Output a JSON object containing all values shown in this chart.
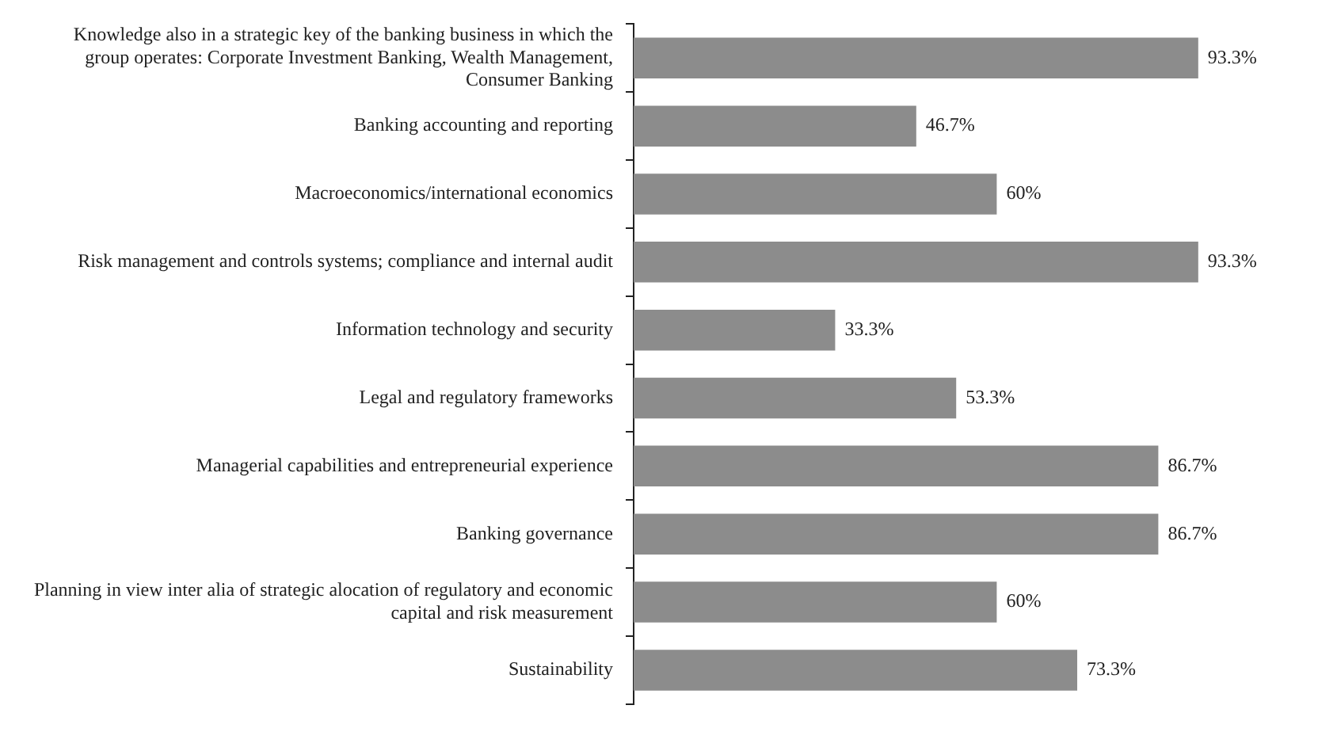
{
  "chart_data": {
    "type": "bar",
    "orientation": "horizontal",
    "categories": [
      "Knowledge also in a strategic key of the banking business in which the group operates: Corporate Investment Banking, Wealth Management, Consumer Banking",
      "Banking accounting and reporting",
      "Macroeconomics/international economics",
      "Risk management and controls systems; compliance and internal audit",
      "Information technology and security",
      "Legal and regulatory frameworks",
      "Managerial capabilities and entrepreneurial experience",
      "Banking governance",
      "Planning in view inter alia of strategic alocation of regulatory and economic capital and risk measurement",
      "Sustainability"
    ],
    "values": [
      93.3,
      46.7,
      60,
      93.3,
      33.3,
      53.3,
      86.7,
      86.7,
      60,
      73.3
    ],
    "value_labels": [
      "93.3%",
      "46.7%",
      "60%",
      "93.3%",
      "33.3%",
      "53.3%",
      "86.7%",
      "86.7%",
      "60%",
      "73.3%"
    ],
    "color": "#8c8c8c",
    "grid": false,
    "legend": false
  }
}
